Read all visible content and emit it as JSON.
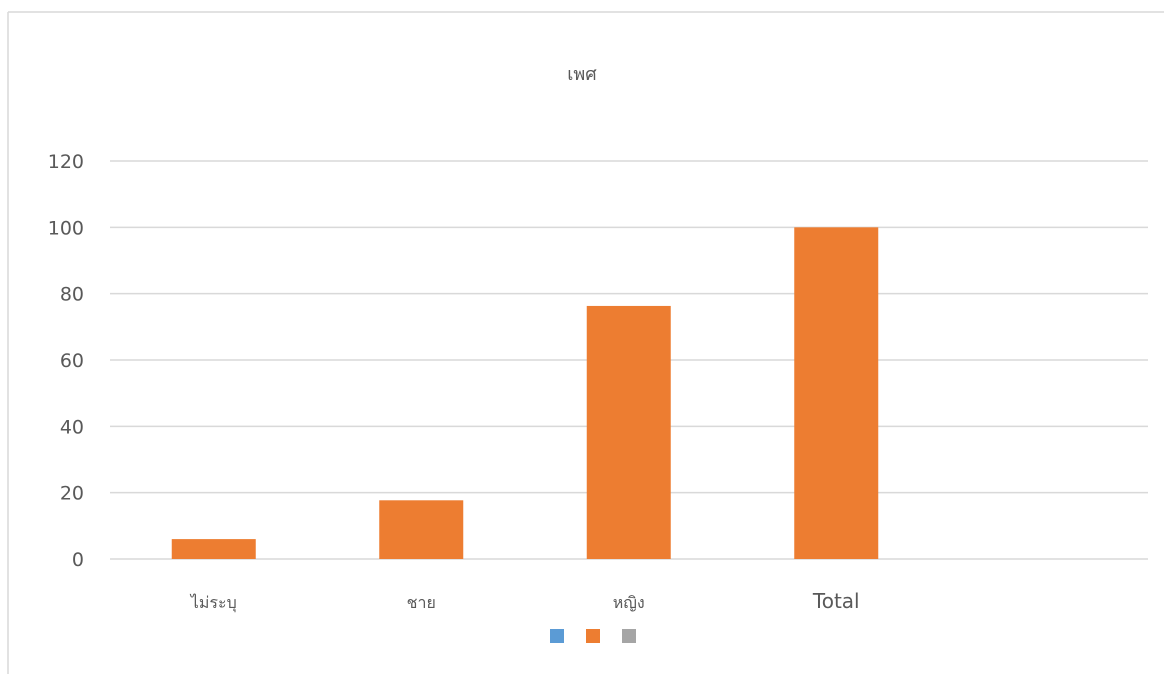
{
  "chart_data": {
    "type": "bar",
    "title": "เพศ",
    "xlabel": "",
    "ylabel": "",
    "categories": [
      "ไม่ระบุ",
      "ชาย",
      "หญิง",
      "Total"
    ],
    "series": [
      {
        "values": [
          null,
          null,
          null,
          null
        ],
        "color": "#5b9bd5"
      },
      {
        "values": [
          6,
          17.7,
          76.3,
          100
        ],
        "color": "#ed7d31"
      },
      {
        "values": [
          null,
          null,
          null,
          null
        ],
        "color": "#a5a5a5"
      }
    ],
    "ylim": [
      0,
      120
    ],
    "yticks": [
      "0",
      "20",
      "40",
      "60",
      "80",
      "100",
      "120"
    ],
    "grid": true,
    "legend_position": "bottom"
  },
  "colors": {
    "gridline": "#d9d9d9",
    "axis_text": "#595959",
    "border": "#d9d9d9"
  }
}
